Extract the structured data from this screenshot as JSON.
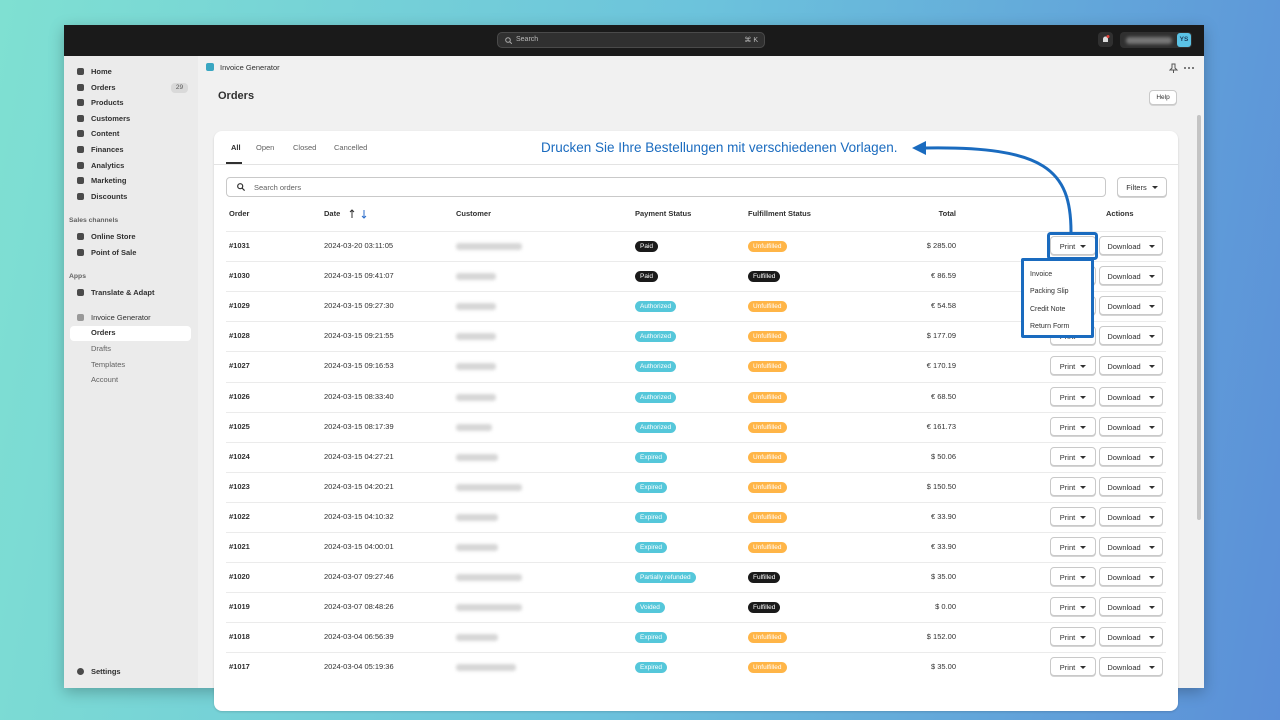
{
  "topbar": {
    "search": "Search",
    "shortcut": "⌘ K",
    "avatar": "YS"
  },
  "sidebar": {
    "nav": [
      "Home",
      "Orders",
      "Products",
      "Customers",
      "Content",
      "Finances",
      "Analytics",
      "Marketing",
      "Discounts"
    ],
    "orders_badge": 29,
    "sales_channels": {
      "title": "Sales channels",
      "items": [
        "Online Store",
        "Point of Sale"
      ]
    },
    "apps": {
      "title": "Apps",
      "items": [
        "Translate & Adapt"
      ]
    },
    "app": {
      "name": "Invoice Generator",
      "items": [
        "Orders",
        "Drafts",
        "Templates",
        "Account"
      ]
    },
    "settings": "Settings"
  },
  "header": {
    "app_name": "Invoice Generator",
    "title": "Orders",
    "help": "Help"
  },
  "tabs": [
    "All",
    "Open",
    "Closed",
    "Cancelled"
  ],
  "annotation": "Drucken Sie Ihre Bestellungen mit verschiedenen Vorlagen.",
  "search_placeholder": "Search orders",
  "filters": "Filters",
  "table": {
    "columns": [
      "Order",
      "Date",
      "Customer",
      "Payment Status",
      "Fulfillment Status",
      "Total",
      "Actions"
    ],
    "print": "Print",
    "download": "Download",
    "rows": [
      {
        "order": "#1031",
        "date": "2024-03-20 03:11:05",
        "payment": "Paid",
        "payment_color": "#1a1a1a",
        "fulfillment": "Unfulfilled",
        "fulfillment_color": "#ffb547",
        "total": "$ 285.00"
      },
      {
        "order": "#1030",
        "date": "2024-03-15 09:41:07",
        "payment": "Paid",
        "payment_color": "#1a1a1a",
        "fulfillment": "Fulfilled",
        "fulfillment_color": "#1a1a1a",
        "total": "€ 86.59"
      },
      {
        "order": "#1029",
        "date": "2024-03-15 09:27:30",
        "payment": "Authorized",
        "payment_color": "#55c7da",
        "fulfillment": "Unfulfilled",
        "fulfillment_color": "#ffb547",
        "total": "€ 54.58"
      },
      {
        "order": "#1028",
        "date": "2024-03-15 09:21:55",
        "payment": "Authorized",
        "payment_color": "#55c7da",
        "fulfillment": "Unfulfilled",
        "fulfillment_color": "#ffb547",
        "total": "$ 177.09"
      },
      {
        "order": "#1027",
        "date": "2024-03-15 09:16:53",
        "payment": "Authorized",
        "payment_color": "#55c7da",
        "fulfillment": "Unfulfilled",
        "fulfillment_color": "#ffb547",
        "total": "€ 170.19"
      },
      {
        "order": "#1026",
        "date": "2024-03-15 08:33:40",
        "payment": "Authorized",
        "payment_color": "#55c7da",
        "fulfillment": "Unfulfilled",
        "fulfillment_color": "#ffb547",
        "total": "€ 68.50"
      },
      {
        "order": "#1025",
        "date": "2024-03-15 08:17:39",
        "payment": "Authorized",
        "payment_color": "#55c7da",
        "fulfillment": "Unfulfilled",
        "fulfillment_color": "#ffb547",
        "total": "€ 161.73"
      },
      {
        "order": "#1024",
        "date": "2024-03-15 04:27:21",
        "payment": "Expired",
        "payment_color": "#55c7da",
        "fulfillment": "Unfulfilled",
        "fulfillment_color": "#ffb547",
        "total": "$ 50.06"
      },
      {
        "order": "#1023",
        "date": "2024-03-15 04:20:21",
        "payment": "Expired",
        "payment_color": "#55c7da",
        "fulfillment": "Unfulfilled",
        "fulfillment_color": "#ffb547",
        "total": "$ 150.50"
      },
      {
        "order": "#1022",
        "date": "2024-03-15 04:10:32",
        "payment": "Expired",
        "payment_color": "#55c7da",
        "fulfillment": "Unfulfilled",
        "fulfillment_color": "#ffb547",
        "total": "€ 33.90"
      },
      {
        "order": "#1021",
        "date": "2024-03-15 04:00:01",
        "payment": "Expired",
        "payment_color": "#55c7da",
        "fulfillment": "Unfulfilled",
        "fulfillment_color": "#ffb547",
        "total": "€ 33.90"
      },
      {
        "order": "#1020",
        "date": "2024-03-07 09:27:46",
        "payment": "Partially refunded",
        "payment_color": "#55c7da",
        "fulfillment": "Fulfilled",
        "fulfillment_color": "#1a1a1a",
        "total": "$ 35.00"
      },
      {
        "order": "#1019",
        "date": "2024-03-07 08:48:26",
        "payment": "Voided",
        "payment_color": "#55c7da",
        "fulfillment": "Fulfilled",
        "fulfillment_color": "#1a1a1a",
        "total": "$ 0.00"
      },
      {
        "order": "#1018",
        "date": "2024-03-04 06:56:39",
        "payment": "Expired",
        "payment_color": "#55c7da",
        "fulfillment": "Unfulfilled",
        "fulfillment_color": "#ffb547",
        "total": "$ 152.00"
      },
      {
        "order": "#1017",
        "date": "2024-03-04 05:19:36",
        "payment": "Expired",
        "payment_color": "#55c7da",
        "fulfillment": "Unfulfilled",
        "fulfillment_color": "#ffb547",
        "total": "$ 35.00"
      }
    ]
  },
  "print_menu": [
    "Invoice",
    "Packing Slip",
    "Credit Note",
    "Return Form"
  ]
}
